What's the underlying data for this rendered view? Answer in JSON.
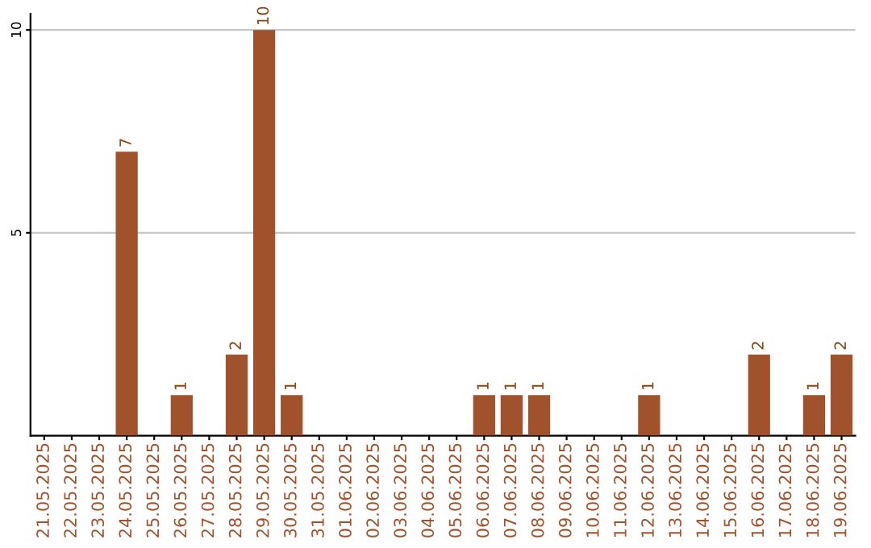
{
  "chart_data": {
    "type": "bar",
    "categories": [
      "21.05.2025",
      "22.05.2025",
      "23.05.2025",
      "24.05.2025",
      "25.05.2025",
      "26.05.2025",
      "27.05.2025",
      "28.05.2025",
      "29.05.2025",
      "30.05.2025",
      "31.05.2025",
      "01.06.2025",
      "02.06.2025",
      "03.06.2025",
      "04.06.2025",
      "05.06.2025",
      "06.06.2025",
      "07.06.2025",
      "08.06.2025",
      "09.06.2025",
      "10.06.2025",
      "11.06.2025",
      "12.06.2025",
      "13.06.2025",
      "14.06.2025",
      "15.06.2025",
      "16.06.2025",
      "17.06.2025",
      "18.06.2025",
      "19.06.2025"
    ],
    "values": [
      0,
      0,
      0,
      7,
      0,
      1,
      0,
      2,
      10,
      1,
      0,
      0,
      0,
      0,
      0,
      0,
      1,
      1,
      1,
      0,
      0,
      0,
      1,
      0,
      0,
      0,
      2,
      0,
      1,
      2
    ],
    "value_labels": [
      null,
      null,
      null,
      "7",
      null,
      "1",
      null,
      "2",
      "10",
      "1",
      null,
      null,
      null,
      null,
      null,
      null,
      "1",
      "1",
      "1",
      null,
      null,
      null,
      "1",
      null,
      null,
      null,
      "2",
      null,
      "1",
      "2"
    ],
    "color": "#a0522d",
    "ylim": [
      0,
      10.4
    ],
    "yticks": [
      5,
      10
    ],
    "grid": "y"
  }
}
